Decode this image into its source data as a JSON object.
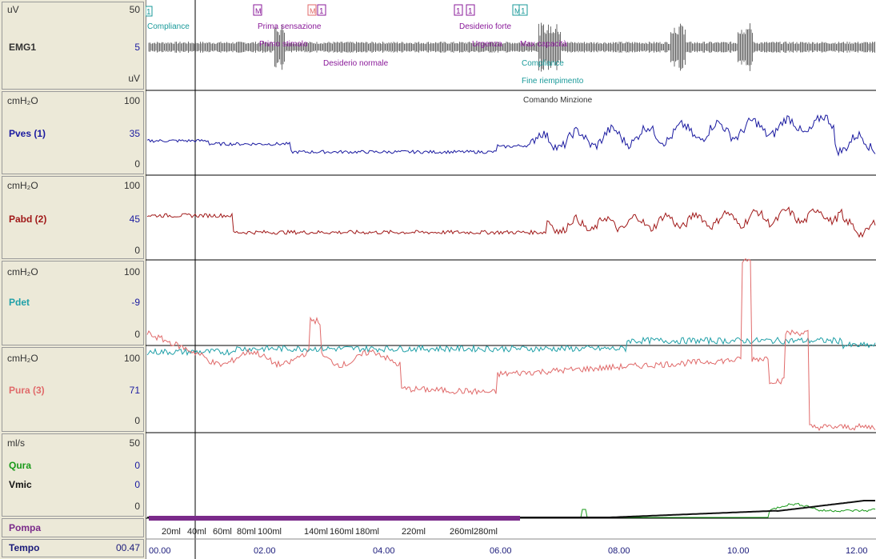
{
  "channels": [
    {
      "key": "emg1",
      "unit_top": "uV",
      "scale_max": "50",
      "name": "EMG1",
      "value": "5",
      "unit_bottom": "uV"
    },
    {
      "key": "pves",
      "unit_top": "cmH₂O",
      "scale_max": "100",
      "name": "Pves (1)",
      "value": "35",
      "scale_min": "0",
      "color": "#1a1aa0"
    },
    {
      "key": "pabd",
      "unit_top": "cmH₂O",
      "scale_max": "100",
      "name": "Pabd (2)",
      "value": "45",
      "scale_min": "0",
      "color": "#a01818"
    },
    {
      "key": "pdet",
      "unit_top": "cmH₂O",
      "scale_max": "100",
      "name": "Pdet",
      "value": "-9",
      "scale_min": "0",
      "color": "#20a0a8"
    },
    {
      "key": "pura",
      "unit_top": "cmH₂O",
      "scale_max": "100",
      "name": "Pura (3)",
      "value": "71",
      "scale_min": "0",
      "color": "#e06a6a"
    },
    {
      "key": "flow",
      "unit_top": "ml/s",
      "scale_max": "50",
      "name": "Qura",
      "value": "0",
      "name2": "Vmic",
      "value2": "0",
      "scale_min": "0",
      "color": "#1a9a1a",
      "color2": "#111111"
    }
  ],
  "pompa": {
    "label": "Pompa",
    "color": "#7a2a8a"
  },
  "tempo": {
    "label": "Tempo",
    "value": "00.47"
  },
  "time_ticks": [
    "00.00",
    "02.00",
    "04.00",
    "06.00",
    "08.00",
    "10.00",
    "12.00"
  ],
  "volume_ticks": [
    "20ml",
    "40ml",
    "60ml",
    "80ml",
    "100ml",
    "140ml",
    "160ml",
    "180ml",
    "220ml",
    "260ml",
    "280ml"
  ],
  "events": {
    "compliance_1": "Compliance",
    "prima_sensazione": "Prima sensazione",
    "primo_stimolo": "Primo stimolo",
    "desiderio_normale": "Desiderio normale",
    "desiderio_forte": "Desiderio forte",
    "urgenza": "Urgenza",
    "max_capacita": "Max capacità",
    "compliance_2": "Compliance",
    "fine_riempimento": "Fine riempimento",
    "comando_minzione": "Comando Minzione"
  },
  "marker_labels": [
    "1",
    "M",
    "1",
    "M",
    "1",
    "1",
    "1",
    "1",
    "M",
    "1"
  ],
  "colors": {
    "event_purple": "#8a1a9a",
    "event_teal": "#1a9a9a",
    "grid": "#000000"
  }
}
